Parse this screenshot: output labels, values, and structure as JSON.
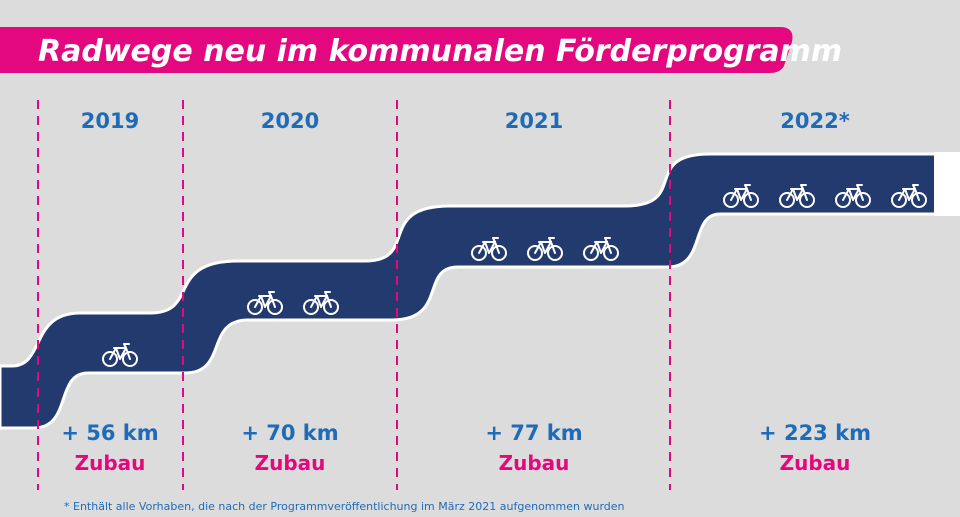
{
  "title": "Radwege neu im kommunalen Förderprogramm",
  "footnote": "* Enthält alle Vorhaben, die nach der Programmveröffentlichung im März 2021 aufgenommen wurden",
  "colors": {
    "background": "#dcdcdc",
    "title_banner": "#e4087e",
    "road": "#233a6e",
    "road_outline": "#ffffff",
    "divider": "#e4087e",
    "year_and_km": "#1f6bb8",
    "zubau": "#e4087e",
    "bike_icon": "#ffffff"
  },
  "icon": "bicycle-icon",
  "chart_data": {
    "type": "bar",
    "title": "Radwege neu im kommunalen Förderprogramm",
    "categories": [
      "2019",
      "2020",
      "2021",
      "2022*"
    ],
    "values": [
      56,
      70,
      77,
      223
    ],
    "value_labels": [
      "+ 56 km",
      "+ 70 km",
      "+ 77 km",
      "+ 223 km"
    ],
    "value_sublabel": "Zubau",
    "unit": "km",
    "bike_icon_counts": [
      1,
      2,
      3,
      4
    ],
    "footnote": "* Enthält alle Vorhaben, die nach der Programmveröffentlichung im März 2021 aufgenommen wurden"
  }
}
